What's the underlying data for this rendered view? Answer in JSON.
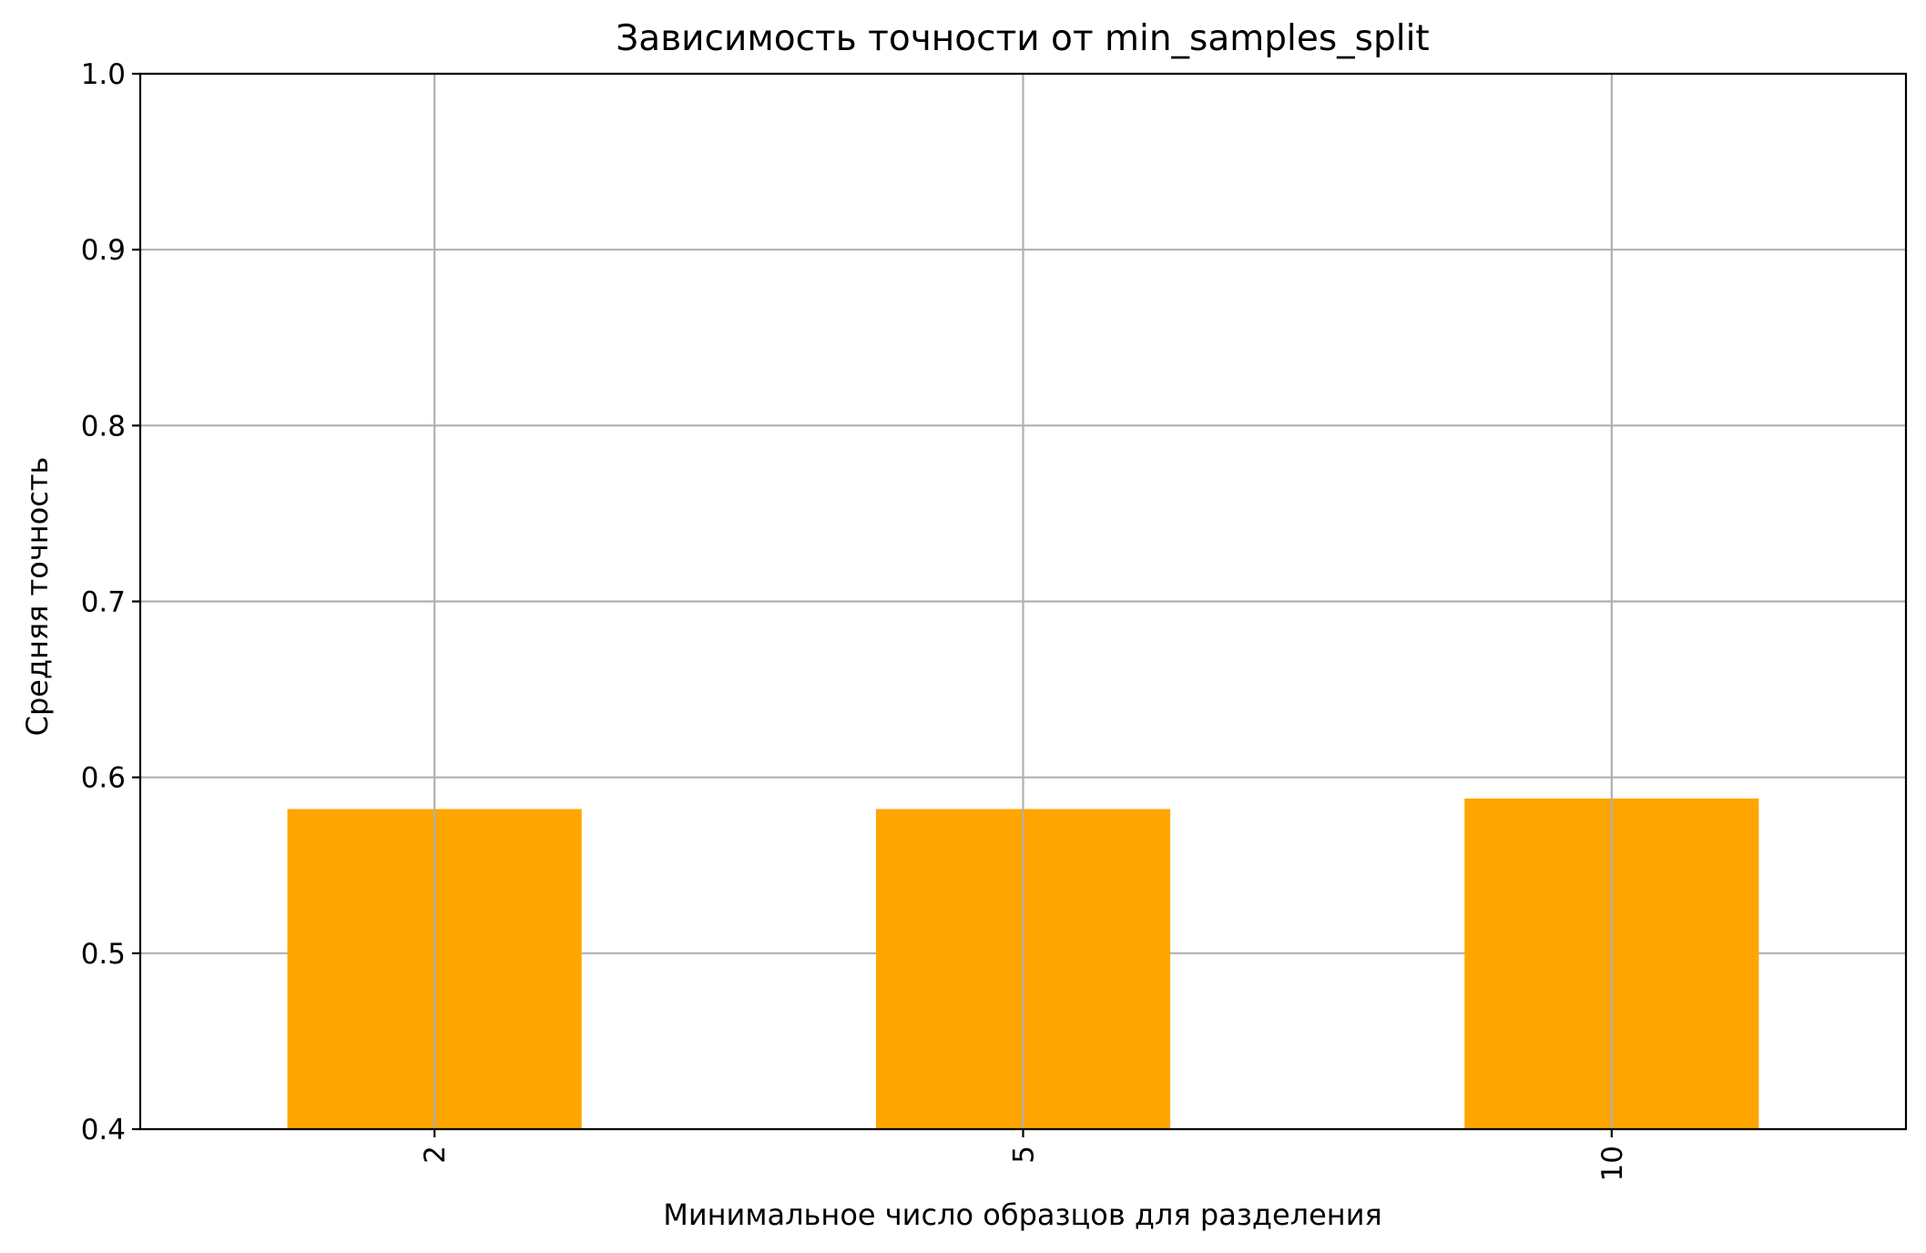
{
  "chart_data": {
    "type": "bar",
    "title": "Зависимость точности от min_samples_split",
    "xlabel": "Минимальное число образцов для разделения",
    "ylabel": "Средняя точность",
    "categories": [
      "2",
      "5",
      "10"
    ],
    "values": [
      0.582,
      0.582,
      0.588
    ],
    "ylim": [
      0.4,
      1.0
    ],
    "yticks": [
      "0.4",
      "0.5",
      "0.6",
      "0.7",
      "0.8",
      "0.9",
      "1.0"
    ],
    "grid": true,
    "bar_color": "#ffa500",
    "x_tick_rotation": "vertical"
  }
}
